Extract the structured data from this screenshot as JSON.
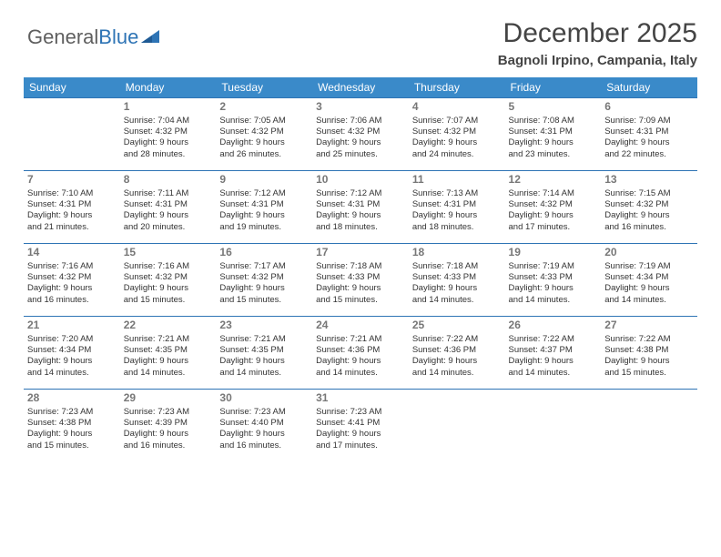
{
  "logo": {
    "text1": "General",
    "text2": "Blue"
  },
  "header": {
    "month_title": "December 2025",
    "location": "Bagnoli Irpino, Campania, Italy"
  },
  "style": {
    "header_bg": "#3a8ac9",
    "header_text": "#ffffff",
    "row_border": "#2e74b5",
    "logo_gray": "#5f5f5f",
    "logo_blue": "#2e74b5",
    "title_color": "#444444",
    "cell_text": "#333333",
    "daynum_color": "#777777",
    "title_fontsize": 30,
    "location_fontsize": 15,
    "header_fontsize": 12,
    "daynum_fontsize": 12,
    "cell_fontsize": 9.5
  },
  "weekdays": [
    "Sunday",
    "Monday",
    "Tuesday",
    "Wednesday",
    "Thursday",
    "Friday",
    "Saturday"
  ],
  "weeks": [
    [
      null,
      {
        "d": "1",
        "sr": "Sunrise: 7:04 AM",
        "ss": "Sunset: 4:32 PM",
        "dl1": "Daylight: 9 hours",
        "dl2": "and 28 minutes."
      },
      {
        "d": "2",
        "sr": "Sunrise: 7:05 AM",
        "ss": "Sunset: 4:32 PM",
        "dl1": "Daylight: 9 hours",
        "dl2": "and 26 minutes."
      },
      {
        "d": "3",
        "sr": "Sunrise: 7:06 AM",
        "ss": "Sunset: 4:32 PM",
        "dl1": "Daylight: 9 hours",
        "dl2": "and 25 minutes."
      },
      {
        "d": "4",
        "sr": "Sunrise: 7:07 AM",
        "ss": "Sunset: 4:32 PM",
        "dl1": "Daylight: 9 hours",
        "dl2": "and 24 minutes."
      },
      {
        "d": "5",
        "sr": "Sunrise: 7:08 AM",
        "ss": "Sunset: 4:31 PM",
        "dl1": "Daylight: 9 hours",
        "dl2": "and 23 minutes."
      },
      {
        "d": "6",
        "sr": "Sunrise: 7:09 AM",
        "ss": "Sunset: 4:31 PM",
        "dl1": "Daylight: 9 hours",
        "dl2": "and 22 minutes."
      }
    ],
    [
      {
        "d": "7",
        "sr": "Sunrise: 7:10 AM",
        "ss": "Sunset: 4:31 PM",
        "dl1": "Daylight: 9 hours",
        "dl2": "and 21 minutes."
      },
      {
        "d": "8",
        "sr": "Sunrise: 7:11 AM",
        "ss": "Sunset: 4:31 PM",
        "dl1": "Daylight: 9 hours",
        "dl2": "and 20 minutes."
      },
      {
        "d": "9",
        "sr": "Sunrise: 7:12 AM",
        "ss": "Sunset: 4:31 PM",
        "dl1": "Daylight: 9 hours",
        "dl2": "and 19 minutes."
      },
      {
        "d": "10",
        "sr": "Sunrise: 7:12 AM",
        "ss": "Sunset: 4:31 PM",
        "dl1": "Daylight: 9 hours",
        "dl2": "and 18 minutes."
      },
      {
        "d": "11",
        "sr": "Sunrise: 7:13 AM",
        "ss": "Sunset: 4:31 PM",
        "dl1": "Daylight: 9 hours",
        "dl2": "and 18 minutes."
      },
      {
        "d": "12",
        "sr": "Sunrise: 7:14 AM",
        "ss": "Sunset: 4:32 PM",
        "dl1": "Daylight: 9 hours",
        "dl2": "and 17 minutes."
      },
      {
        "d": "13",
        "sr": "Sunrise: 7:15 AM",
        "ss": "Sunset: 4:32 PM",
        "dl1": "Daylight: 9 hours",
        "dl2": "and 16 minutes."
      }
    ],
    [
      {
        "d": "14",
        "sr": "Sunrise: 7:16 AM",
        "ss": "Sunset: 4:32 PM",
        "dl1": "Daylight: 9 hours",
        "dl2": "and 16 minutes."
      },
      {
        "d": "15",
        "sr": "Sunrise: 7:16 AM",
        "ss": "Sunset: 4:32 PM",
        "dl1": "Daylight: 9 hours",
        "dl2": "and 15 minutes."
      },
      {
        "d": "16",
        "sr": "Sunrise: 7:17 AM",
        "ss": "Sunset: 4:32 PM",
        "dl1": "Daylight: 9 hours",
        "dl2": "and 15 minutes."
      },
      {
        "d": "17",
        "sr": "Sunrise: 7:18 AM",
        "ss": "Sunset: 4:33 PM",
        "dl1": "Daylight: 9 hours",
        "dl2": "and 15 minutes."
      },
      {
        "d": "18",
        "sr": "Sunrise: 7:18 AM",
        "ss": "Sunset: 4:33 PM",
        "dl1": "Daylight: 9 hours",
        "dl2": "and 14 minutes."
      },
      {
        "d": "19",
        "sr": "Sunrise: 7:19 AM",
        "ss": "Sunset: 4:33 PM",
        "dl1": "Daylight: 9 hours",
        "dl2": "and 14 minutes."
      },
      {
        "d": "20",
        "sr": "Sunrise: 7:19 AM",
        "ss": "Sunset: 4:34 PM",
        "dl1": "Daylight: 9 hours",
        "dl2": "and 14 minutes."
      }
    ],
    [
      {
        "d": "21",
        "sr": "Sunrise: 7:20 AM",
        "ss": "Sunset: 4:34 PM",
        "dl1": "Daylight: 9 hours",
        "dl2": "and 14 minutes."
      },
      {
        "d": "22",
        "sr": "Sunrise: 7:21 AM",
        "ss": "Sunset: 4:35 PM",
        "dl1": "Daylight: 9 hours",
        "dl2": "and 14 minutes."
      },
      {
        "d": "23",
        "sr": "Sunrise: 7:21 AM",
        "ss": "Sunset: 4:35 PM",
        "dl1": "Daylight: 9 hours",
        "dl2": "and 14 minutes."
      },
      {
        "d": "24",
        "sr": "Sunrise: 7:21 AM",
        "ss": "Sunset: 4:36 PM",
        "dl1": "Daylight: 9 hours",
        "dl2": "and 14 minutes."
      },
      {
        "d": "25",
        "sr": "Sunrise: 7:22 AM",
        "ss": "Sunset: 4:36 PM",
        "dl1": "Daylight: 9 hours",
        "dl2": "and 14 minutes."
      },
      {
        "d": "26",
        "sr": "Sunrise: 7:22 AM",
        "ss": "Sunset: 4:37 PM",
        "dl1": "Daylight: 9 hours",
        "dl2": "and 14 minutes."
      },
      {
        "d": "27",
        "sr": "Sunrise: 7:22 AM",
        "ss": "Sunset: 4:38 PM",
        "dl1": "Daylight: 9 hours",
        "dl2": "and 15 minutes."
      }
    ],
    [
      {
        "d": "28",
        "sr": "Sunrise: 7:23 AM",
        "ss": "Sunset: 4:38 PM",
        "dl1": "Daylight: 9 hours",
        "dl2": "and 15 minutes."
      },
      {
        "d": "29",
        "sr": "Sunrise: 7:23 AM",
        "ss": "Sunset: 4:39 PM",
        "dl1": "Daylight: 9 hours",
        "dl2": "and 16 minutes."
      },
      {
        "d": "30",
        "sr": "Sunrise: 7:23 AM",
        "ss": "Sunset: 4:40 PM",
        "dl1": "Daylight: 9 hours",
        "dl2": "and 16 minutes."
      },
      {
        "d": "31",
        "sr": "Sunrise: 7:23 AM",
        "ss": "Sunset: 4:41 PM",
        "dl1": "Daylight: 9 hours",
        "dl2": "and 17 minutes."
      },
      null,
      null,
      null
    ]
  ]
}
